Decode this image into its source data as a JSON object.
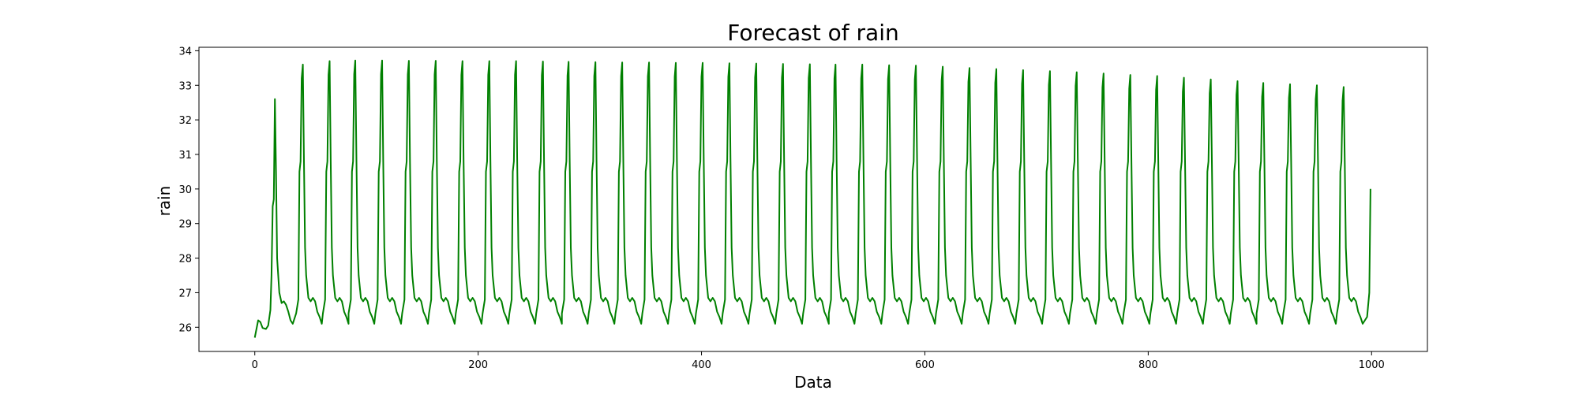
{
  "chart_data": {
    "type": "line",
    "title": "Forecast of rain",
    "xlabel": "Data",
    "ylabel": "rain",
    "xlim": [
      -50,
      1050
    ],
    "ylim": [
      25.3,
      34.1
    ],
    "xticks": [
      0,
      200,
      400,
      600,
      800,
      1000
    ],
    "yticks": [
      26,
      27,
      28,
      29,
      30,
      31,
      32,
      33,
      34
    ],
    "grid": false,
    "legend": "none",
    "series": [
      {
        "color": "#008000",
        "cycle_length": 23.9,
        "n_points": 1000,
        "initial_segment": [
          [
            0,
            25.7
          ],
          [
            3,
            26.2
          ],
          [
            5,
            26.15
          ],
          [
            7,
            25.98
          ],
          [
            10,
            25.95
          ],
          [
            12,
            26.05
          ],
          [
            14,
            26.5
          ],
          [
            15,
            27.5
          ],
          [
            16,
            29.5
          ],
          [
            17,
            29.7
          ],
          [
            18,
            32.6
          ],
          [
            19,
            30.5
          ],
          [
            20,
            28.0
          ],
          [
            22,
            27.0
          ],
          [
            24,
            26.7
          ],
          [
            26,
            26.75
          ],
          [
            28,
            26.65
          ],
          [
            30,
            26.45
          ],
          [
            32,
            26.2
          ],
          [
            34,
            26.1
          ]
        ],
        "peak_x": [
          43,
          67,
          90,
          114,
          138,
          162,
          186,
          210,
          234,
          258,
          281,
          305,
          329,
          353,
          377,
          401,
          425,
          449,
          473,
          497,
          520,
          544,
          568,
          592,
          616,
          640,
          664,
          688,
          712,
          736,
          760,
          784,
          808,
          832,
          856,
          880,
          903,
          927,
          951,
          975
        ],
        "peak_y": [
          33.6,
          33.7,
          33.72,
          33.72,
          33.71,
          33.71,
          33.7,
          33.7,
          33.7,
          33.69,
          33.68,
          33.67,
          33.66,
          33.66,
          33.65,
          33.65,
          33.64,
          33.63,
          33.62,
          33.61,
          33.6,
          33.6,
          33.58,
          33.57,
          33.54,
          33.5,
          33.47,
          33.44,
          33.41,
          33.38,
          33.34,
          33.3,
          33.27,
          33.22,
          33.17,
          33.12,
          33.07,
          33.03,
          33.0,
          32.95
        ],
        "trough_y": 26.1,
        "shoulder_y": 26.85,
        "final_point": [
          999,
          30.0
        ]
      }
    ]
  }
}
